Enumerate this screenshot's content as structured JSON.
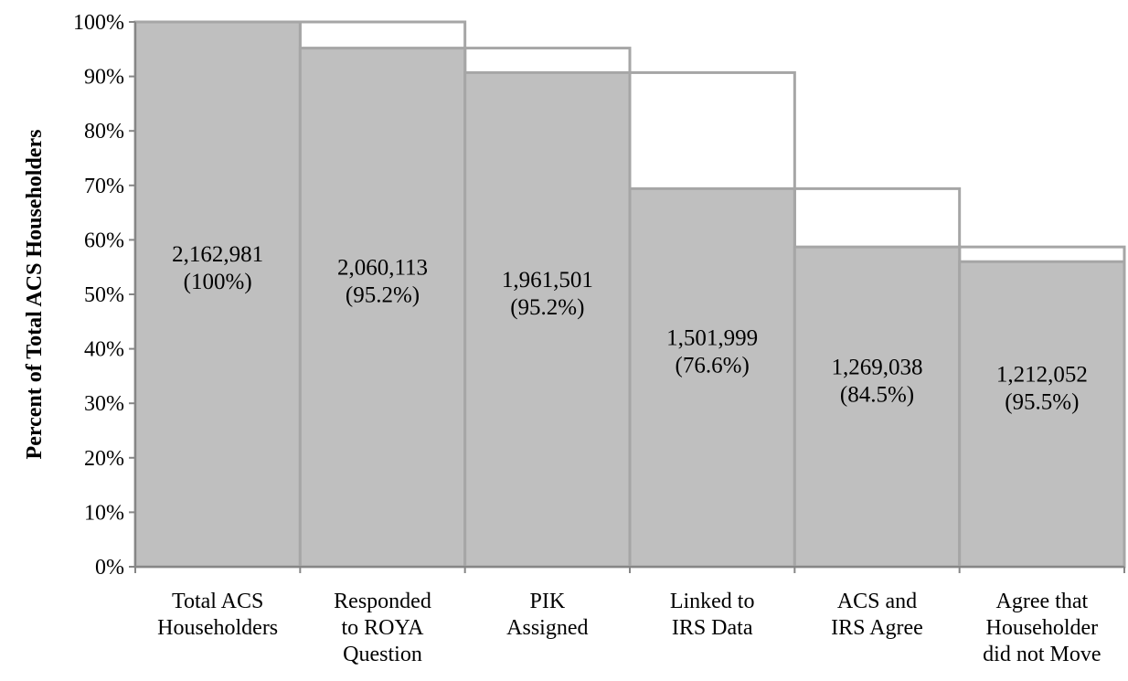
{
  "chart_data": {
    "type": "bar",
    "title": "",
    "xlabel": "",
    "ylabel": "Percent of Total ACS Householders",
    "ylim": [
      0,
      100
    ],
    "yticks": [
      "0%",
      "10%",
      "20%",
      "30%",
      "40%",
      "50%",
      "60%",
      "70%",
      "80%",
      "90%",
      "100%"
    ],
    "grid": false,
    "legend": "none",
    "categories": [
      [
        "Total ACS",
        "Householders"
      ],
      [
        "Responded",
        "to ROYA",
        "Question"
      ],
      [
        "PIK",
        "Assigned"
      ],
      [
        "Linked to",
        "IRS Data"
      ],
      [
        "ACS and",
        "IRS Agree"
      ],
      [
        "Agree that",
        "Householder",
        "did not Move"
      ]
    ],
    "values": [
      100,
      95.2,
      90.7,
      69.4,
      58.7,
      56.0
    ],
    "previous_step_outline": [
      null,
      100,
      95.2,
      90.7,
      69.4,
      58.7
    ],
    "data_labels": [
      [
        "2,162,981",
        "(100%)"
      ],
      [
        "2,060,113",
        "(95.2%)"
      ],
      [
        "1,961,501",
        "(95.2%)"
      ],
      [
        "1,501,999",
        "(76.6%)"
      ],
      [
        "1,269,038",
        "(84.5%)"
      ],
      [
        "1,212,052",
        "(95.5%)"
      ]
    ],
    "colors": {
      "bar_fill": "#bfbfbf",
      "bar_edge": "#a6a6a6",
      "outline": "#a6a6a6",
      "axis": "#868686"
    }
  }
}
